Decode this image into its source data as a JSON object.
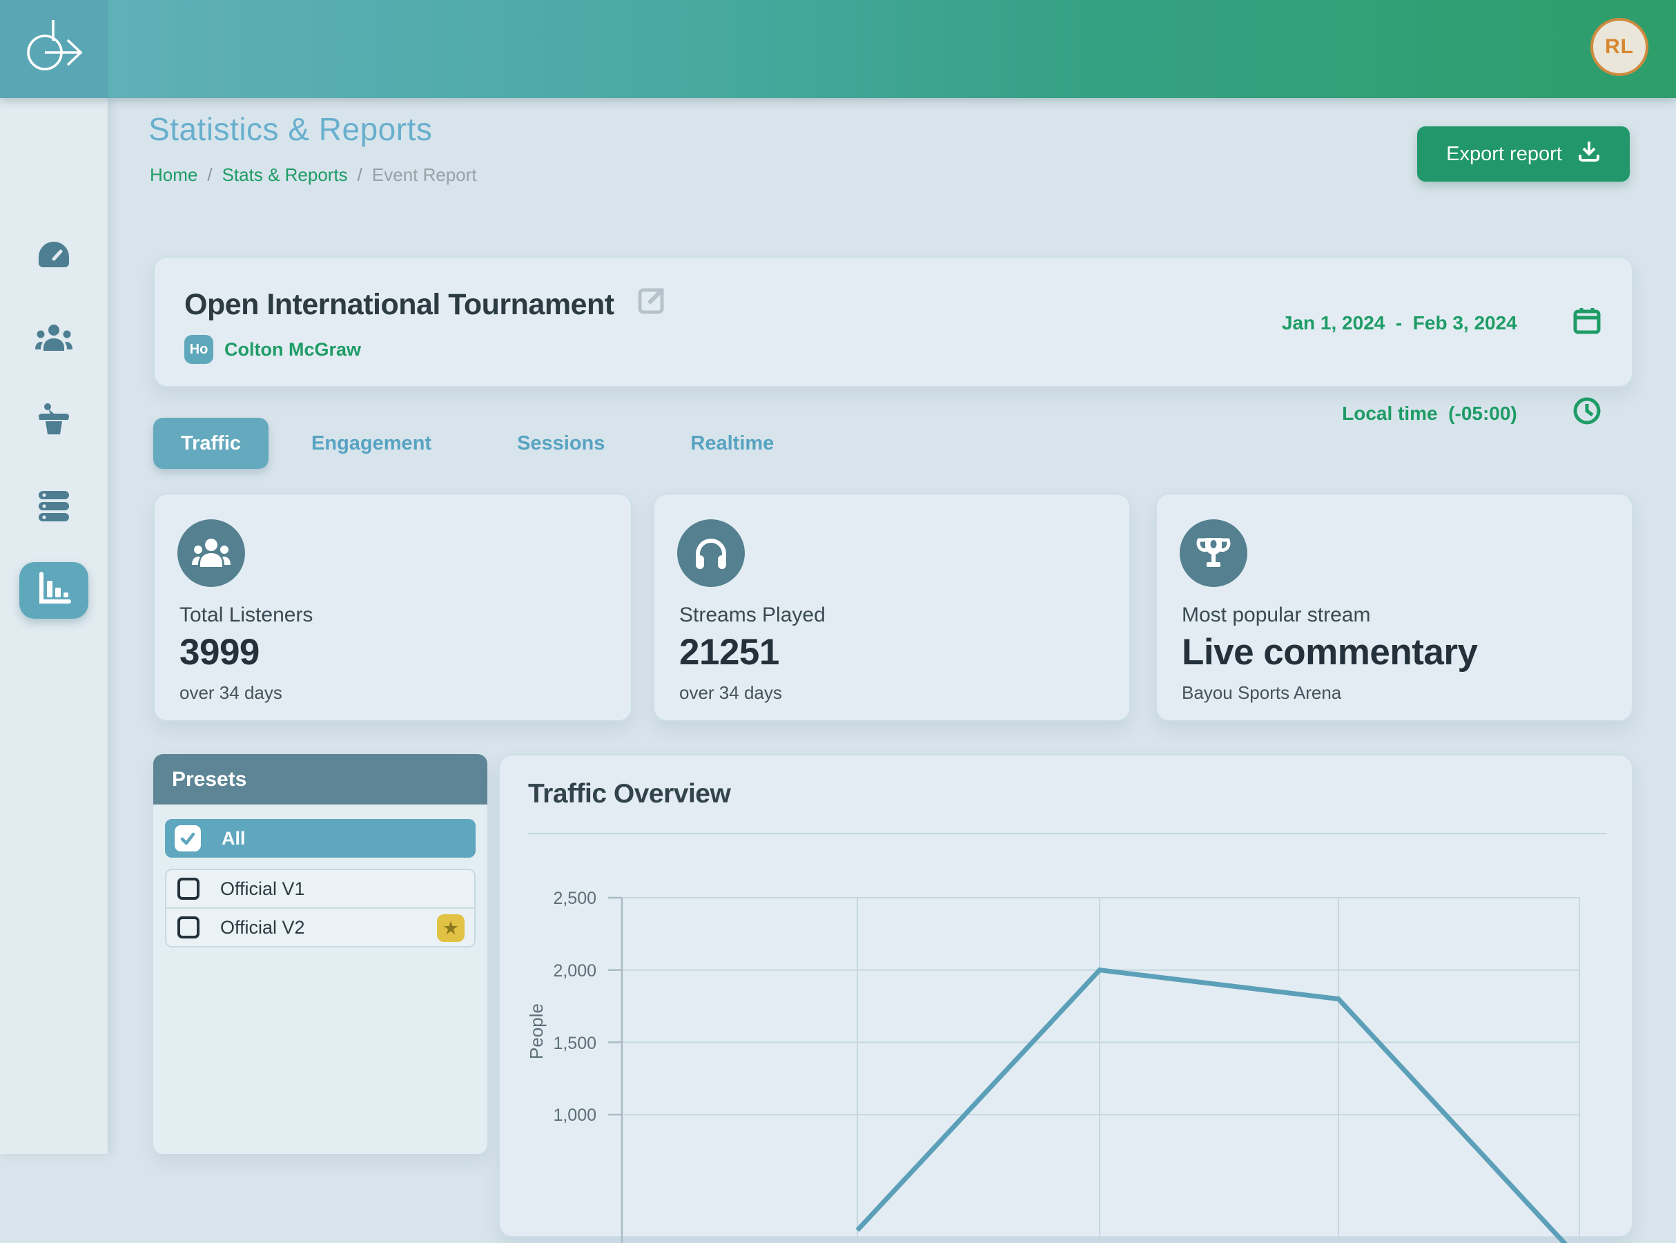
{
  "topbar": {
    "avatar_initials": "RL"
  },
  "sidebar": {
    "items": [
      {
        "icon": "gauge-icon",
        "active": false
      },
      {
        "icon": "users-icon",
        "active": false
      },
      {
        "icon": "podium-icon",
        "active": false
      },
      {
        "icon": "server-icon",
        "active": false
      },
      {
        "icon": "bar-chart-icon",
        "active": true
      }
    ]
  },
  "header": {
    "title": "Statistics & Reports",
    "breadcrumb": [
      {
        "label": "Home"
      },
      {
        "label": "Stats & Reports"
      },
      {
        "label": "Event Report"
      }
    ],
    "breadcrumb_separator": "/",
    "export_label": "Export report"
  },
  "event": {
    "title": "Open International Tournament",
    "host_badge": "Ho",
    "host_name": "Colton McGraw",
    "date_range": "Jan 1, 2024  -  Feb 3, 2024",
    "local_time": "Local time  (-05:00)"
  },
  "tabs": [
    {
      "label": "Traffic",
      "active": true
    },
    {
      "label": "Engagement",
      "active": false
    },
    {
      "label": "Sessions",
      "active": false
    },
    {
      "label": "Realtime",
      "active": false
    }
  ],
  "stats": [
    {
      "icon": "people-icon",
      "label": "Total Listeners",
      "value": "3999",
      "sub": "over 34 days"
    },
    {
      "icon": "headphones-icon",
      "label": "Streams Played",
      "value": "21251",
      "sub": "over 34 days"
    },
    {
      "icon": "trophy-icon",
      "label": "Most popular stream",
      "value": "Live commentary",
      "sub": "Bayou Sports Arena"
    }
  ],
  "presets": {
    "title": "Presets",
    "all_option": {
      "label": "All",
      "checked": true
    },
    "options": [
      {
        "label": "Official V1",
        "checked": false,
        "starred": false
      },
      {
        "label": "Official V2",
        "checked": false,
        "starred": true
      }
    ],
    "star_glyph": "★"
  },
  "chart_data": {
    "type": "line",
    "title": "Traffic Overview",
    "ylabel": "People",
    "ytick_labels": [
      "2,500",
      "2,000",
      "1,500",
      "1,000"
    ],
    "yticks": [
      2500,
      2000,
      1500,
      1000
    ],
    "ylim": [
      0,
      2500
    ],
    "grid": true,
    "x_axis": "tick labels cropped out of visible screenshot area",
    "series": [
      {
        "name": "traffic",
        "x_gridline_index": [
          1,
          2,
          3,
          4
        ],
        "values_est": [
          200,
          2000,
          1800,
          0
        ]
      }
    ],
    "line_color": "#5b9fb8"
  },
  "colors": {
    "topbar_gradient_start": "#64b1bd",
    "topbar_gradient_end": "#2e9e6a",
    "logo_tile": "#5ba6b4",
    "sidebar_bg": "#e1ebf0",
    "main_bg": "#d8e4eb",
    "card_bg": "#e2ecf2",
    "accent_green": "#1e9c66",
    "export_green": "#21976b",
    "title_blue": "#68afce",
    "tab_teal": "#64a9bd",
    "stat_icon_circle": "#54808f",
    "presets_header": "#5d8595",
    "preset_all_bg": "#5fa6bf",
    "star_yellow": "#e2c244",
    "avatar_border": "#cf8a3e",
    "chart_line": "#5b9fb8"
  }
}
